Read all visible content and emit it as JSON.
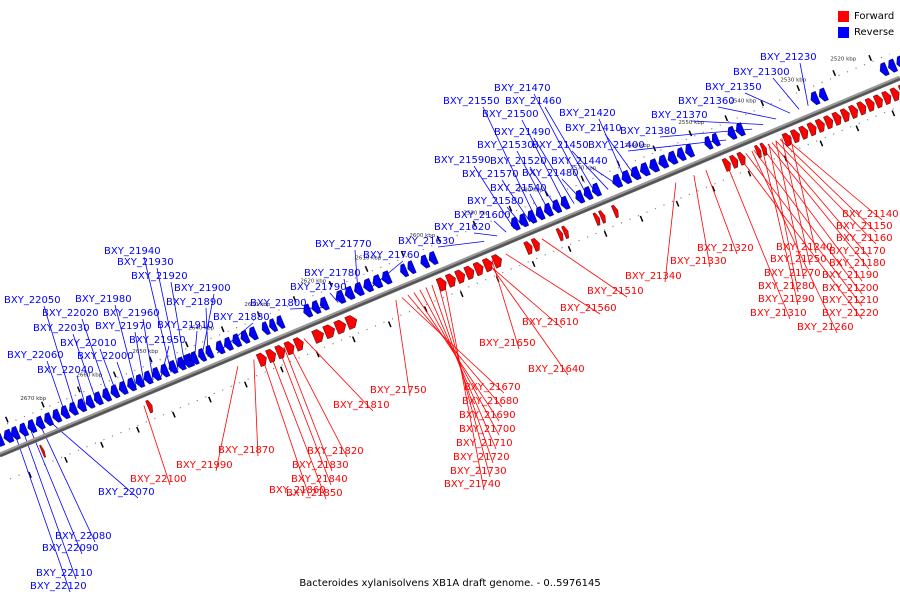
{
  "legend": {
    "forward": "Forward",
    "reverse": "Reverse",
    "forward_color": "#ff0000",
    "reverse_color": "#0000ff"
  },
  "caption": "Bacteroides xylanisolvens XB1A draft genome. - 0..5976145",
  "colors": {
    "forward": "#ff0000",
    "reverse": "#0000ff",
    "backbone": "#555555"
  },
  "ticks": [
    "2520 kbp",
    "2530 kbp",
    "2540 kbp",
    "2550 kbp",
    "2560 kbp",
    "2570 kbp",
    "2580 kbp",
    "2590 kbp",
    "2600 kbp",
    "2610 kbp",
    "2620 kbp",
    "2630 kbp",
    "2640 kbp",
    "2650 kbp",
    "2660 kbp",
    "2670 kbp"
  ],
  "reverse_labels": [
    "BXY_21230",
    "BXY_21300",
    "BXY_21350",
    "BXY_21360",
    "BXY_21370",
    "BXY_21380",
    "BXY_21400",
    "BXY_21410",
    "BXY_21420",
    "BXY_21440",
    "BXY_21450",
    "BXY_21460",
    "BXY_21470",
    "BXY_21480",
    "BXY_21490",
    "BXY_21500",
    "BXY_21520",
    "BXY_21530",
    "BXY_21540",
    "BXY_21550",
    "BXY_21570",
    "BXY_21580",
    "BXY_21590",
    "BXY_21600",
    "BXY_21620",
    "BXY_21630",
    "BXY_21760",
    "BXY_21770",
    "BXY_21780",
    "BXY_21790",
    "BXY_21800",
    "BXY_21880",
    "BXY_21890",
    "BXY_21900",
    "BXY_21910",
    "BXY_21920",
    "BXY_21930",
    "BXY_21940",
    "BXY_21950",
    "BXY_21960",
    "BXY_21970",
    "BXY_21980",
    "BXY_22000",
    "BXY_22010",
    "BXY_22020",
    "BXY_22030",
    "BXY_22040",
    "BXY_22050",
    "BXY_22060",
    "BXY_22070",
    "BXY_22080",
    "BXY_22090",
    "BXY_22110",
    "BXY_22120"
  ],
  "forward_labels": [
    "BXY_21140",
    "BXY_21150",
    "BXY_21160",
    "BXY_21170",
    "BXY_21180",
    "BXY_21190",
    "BXY_21200",
    "BXY_21210",
    "BXY_21220",
    "BXY_21240",
    "BXY_21250",
    "BXY_21260",
    "BXY_21270",
    "BXY_21280",
    "BXY_21290",
    "BXY_21310",
    "BXY_21320",
    "BXY_21330",
    "BXY_21340",
    "BXY_21510",
    "BXY_21560",
    "BXY_21610",
    "BXY_21640",
    "BXY_21650",
    "BXY_21670",
    "BXY_21680",
    "BXY_21690",
    "BXY_21700",
    "BXY_21710",
    "BXY_21720",
    "BXY_21730",
    "BXY_21740",
    "BXY_21750",
    "BXY_21810",
    "BXY_21820",
    "BXY_21830",
    "BXY_21840",
    "BXY_21850",
    "BXY_21860",
    "BXY_21870",
    "BXY_21990",
    "BXY_22100"
  ]
}
